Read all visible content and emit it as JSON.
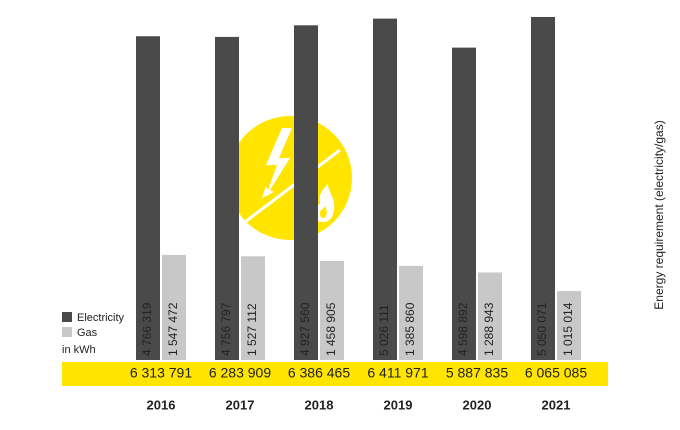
{
  "chart_data": {
    "type": "bar",
    "axis_title": "Energy requirement (electricity/gas)",
    "unit_note": "in kWh",
    "categories": [
      "2016",
      "2017",
      "2018",
      "2019",
      "2020",
      "2021"
    ],
    "series": [
      {
        "name": "Electricity",
        "color": "#4a4a4a",
        "values": [
          4766319,
          4756797,
          4927560,
          5026111,
          4598892,
          5050071
        ],
        "value_labels": [
          "4 766 319",
          "4 756 797",
          "4 927 560",
          "5 026 111",
          "4 598 892",
          "5 050 071"
        ]
      },
      {
        "name": "Gas",
        "color": "#c8c8c8",
        "values": [
          1547472,
          1527112,
          1458905,
          1385860,
          1288943,
          1015014
        ],
        "value_labels": [
          "1 547 472",
          "1 527 112",
          "1 458 905",
          "1 385 860",
          "1 288 943",
          "1 015 014"
        ]
      }
    ],
    "totals": [
      6313791,
      6283909,
      6386465,
      6411971,
      5887835,
      6065085
    ],
    "total_labels": [
      "6 313 791",
      "6 283 909",
      "6 386 465",
      "6 411 971",
      "5 887 835",
      "6 065 085"
    ],
    "band_color": "#ffe500",
    "ylim": [
      0,
      5300000
    ]
  }
}
